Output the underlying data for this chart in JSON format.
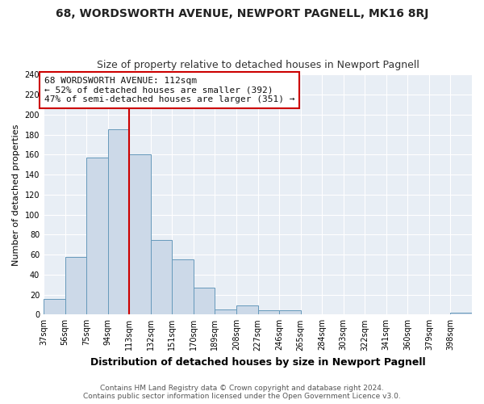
{
  "title": "68, WORDSWORTH AVENUE, NEWPORT PAGNELL, MK16 8RJ",
  "subtitle": "Size of property relative to detached houses in Newport Pagnell",
  "xlabel": "Distribution of detached houses by size in Newport Pagnell",
  "ylabel": "Number of detached properties",
  "bar_edges": [
    37,
    56,
    75,
    94,
    113,
    132,
    151,
    170,
    189,
    208,
    227,
    246,
    265,
    284,
    303,
    322,
    341,
    360,
    379,
    398,
    417
  ],
  "bar_heights": [
    16,
    58,
    157,
    185,
    160,
    75,
    55,
    27,
    5,
    9,
    4,
    4,
    0,
    0,
    0,
    0,
    0,
    0,
    0,
    2
  ],
  "bar_color": "#ccd9e8",
  "bar_edge_color": "#6699bb",
  "ref_line_x": 113,
  "ref_line_color": "#cc0000",
  "ylim": [
    0,
    240
  ],
  "yticks": [
    0,
    20,
    40,
    60,
    80,
    100,
    120,
    140,
    160,
    180,
    200,
    220,
    240
  ],
  "annotation_text": "68 WORDSWORTH AVENUE: 112sqm\n← 52% of detached houses are smaller (392)\n47% of semi-detached houses are larger (351) →",
  "annotation_box_color": "#ffffff",
  "annotation_box_edge": "#cc0000",
  "footer_line1": "Contains HM Land Registry data © Crown copyright and database right 2024.",
  "footer_line2": "Contains public sector information licensed under the Open Government Licence v3.0.",
  "fig_background_color": "#ffffff",
  "plot_bg_color": "#e8eef5",
  "grid_color": "#ffffff",
  "title_fontsize": 10,
  "subtitle_fontsize": 9,
  "xlabel_fontsize": 9,
  "ylabel_fontsize": 8,
  "tick_fontsize": 7,
  "annotation_fontsize": 8,
  "footer_fontsize": 6.5
}
